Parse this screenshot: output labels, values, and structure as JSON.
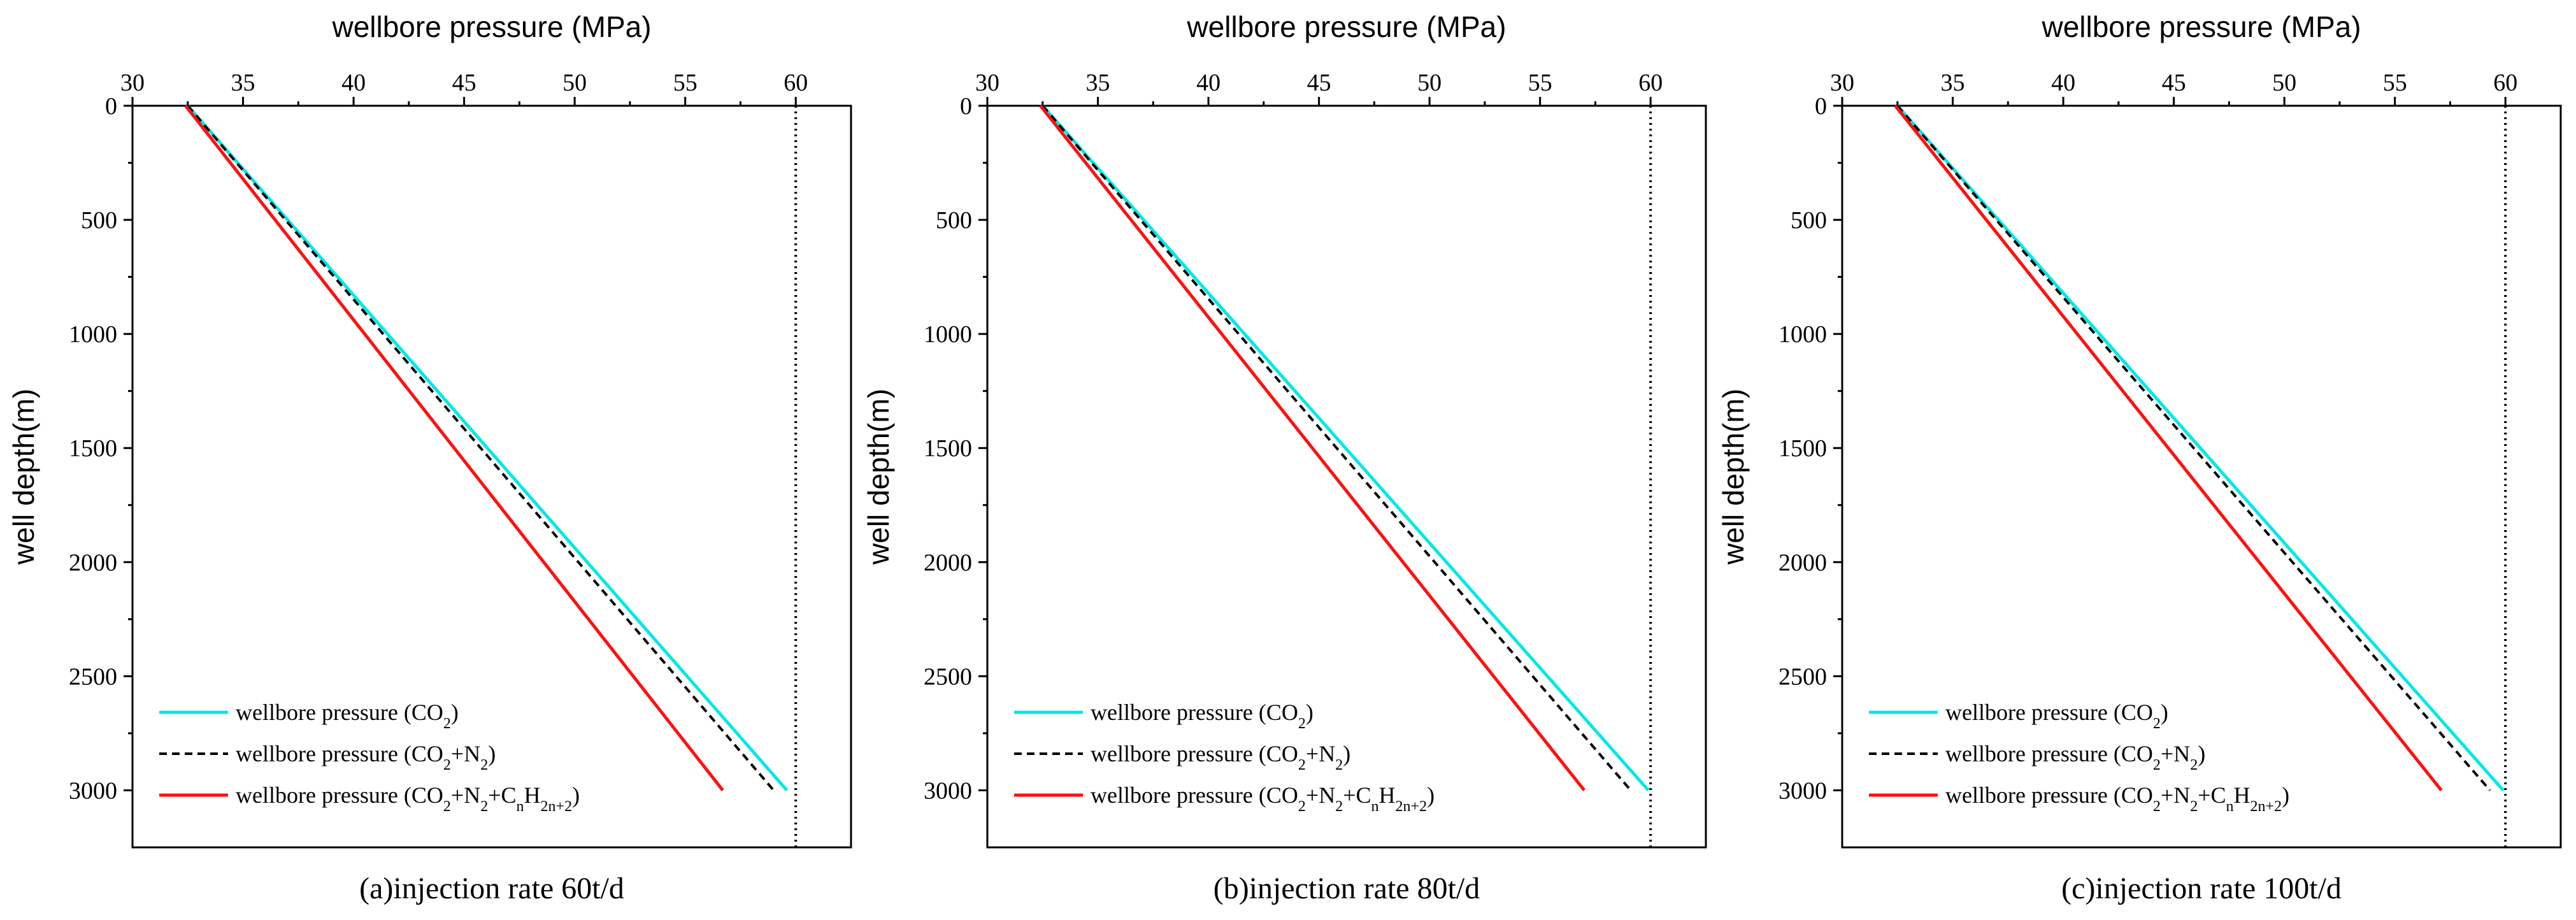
{
  "colors": {
    "co2": "#00e8e8",
    "co2_n2": "#000000",
    "co2_n2_cnh": "#ff1010",
    "limit": "#000000"
  },
  "chart_data": [
    {
      "type": "line",
      "caption": "(a)injection rate 60t/d",
      "xlabel": "wellbore pressure (MPa)",
      "ylabel": "well depth(m)",
      "xlim": [
        30,
        62.5
      ],
      "ylim": [
        0,
        3250
      ],
      "y_inverted": true,
      "x_axis_position": "top",
      "xticks": [
        30,
        35,
        40,
        45,
        50,
        55,
        60
      ],
      "yticks": [
        0,
        500,
        1000,
        1500,
        2000,
        2500,
        3000
      ],
      "reference_line": {
        "x": 60,
        "style": "dotted"
      },
      "legend_position": "bottom-left",
      "series": [
        {
          "name": "wellbore pressure (CO2)",
          "label_main": "wellbore pressure (CO",
          "label_sub": "2",
          "label_tail": ")",
          "style": "solid",
          "color_key": "co2",
          "x": [
            32.5,
            59.6
          ],
          "y": [
            0,
            3000
          ]
        },
        {
          "name": "wellbore pressure (CO2+N2)",
          "label_main": "wellbore pressure (CO",
          "label_sub": "2",
          "label_mid": "+N",
          "label_sub2": "2",
          "label_tail": ")",
          "style": "dashed",
          "color_key": "co2_n2",
          "x": [
            32.5,
            59.0
          ],
          "y": [
            0,
            3000
          ]
        },
        {
          "name": "wellbore pressure (CO2+N2+CnH2n+2)",
          "style": "solid",
          "color_key": "co2_n2_cnh",
          "x": [
            32.4,
            56.7
          ],
          "y": [
            0,
            3000
          ]
        }
      ]
    },
    {
      "type": "line",
      "caption": "(b)injection rate 80t/d",
      "xlabel": "wellbore pressure (MPa)",
      "ylabel": "well depth(m)",
      "xlim": [
        30,
        62.5
      ],
      "ylim": [
        0,
        3250
      ],
      "y_inverted": true,
      "x_axis_position": "top",
      "xticks": [
        30,
        35,
        40,
        45,
        50,
        55,
        60
      ],
      "yticks": [
        0,
        500,
        1000,
        1500,
        2000,
        2500,
        3000
      ],
      "reference_line": {
        "x": 60,
        "style": "dotted"
      },
      "legend_position": "bottom-left",
      "series": [
        {
          "name": "wellbore pressure (CO2)",
          "style": "solid",
          "color_key": "co2",
          "x": [
            32.5,
            59.9
          ],
          "y": [
            0,
            3000
          ]
        },
        {
          "name": "wellbore pressure (CO2+N2)",
          "style": "dashed",
          "color_key": "co2_n2",
          "x": [
            32.5,
            59.1
          ],
          "y": [
            0,
            3000
          ]
        },
        {
          "name": "wellbore pressure (CO2+N2+CnH2n+2)",
          "style": "solid",
          "color_key": "co2_n2_cnh",
          "x": [
            32.4,
            57.0
          ],
          "y": [
            0,
            3000
          ]
        }
      ]
    },
    {
      "type": "line",
      "caption": "(c)injection rate 100t/d",
      "xlabel": "wellbore pressure (MPa)",
      "ylabel": "well depth(m)",
      "xlim": [
        30,
        62.5
      ],
      "ylim": [
        0,
        3250
      ],
      "y_inverted": true,
      "x_axis_position": "top",
      "xticks": [
        30,
        35,
        40,
        45,
        50,
        55,
        60
      ],
      "yticks": [
        0,
        500,
        1000,
        1500,
        2000,
        2500,
        3000
      ],
      "reference_line": {
        "x": 60,
        "style": "dotted"
      },
      "legend_position": "bottom-left",
      "series": [
        {
          "name": "wellbore pressure (CO2)",
          "style": "solid",
          "color_key": "co2",
          "x": [
            32.5,
            59.9
          ],
          "y": [
            0,
            3000
          ]
        },
        {
          "name": "wellbore pressure (CO2+N2)",
          "style": "dashed",
          "color_key": "co2_n2",
          "x": [
            32.5,
            59.3
          ],
          "y": [
            0,
            3000
          ]
        },
        {
          "name": "wellbore pressure (CO2+N2+CnH2n+2)",
          "style": "solid",
          "color_key": "co2_n2_cnh",
          "x": [
            32.4,
            57.1
          ],
          "y": [
            0,
            3000
          ]
        }
      ]
    }
  ],
  "legend_labels": {
    "co2": {
      "a": "wellbore pressure (CO",
      "s1": "2",
      "b": ")"
    },
    "co2_n2": {
      "a": "wellbore pressure (CO",
      "s1": "2",
      "b": "+N",
      "s2": "2",
      "c": ")"
    },
    "co2_n2_cnh": {
      "a": "wellbore pressure (CO",
      "s1": "2",
      "b": "+N",
      "s2": "2",
      "c": "+C",
      "s3": "n",
      "d": "H",
      "s4": "2n+2",
      "e": ")"
    }
  }
}
